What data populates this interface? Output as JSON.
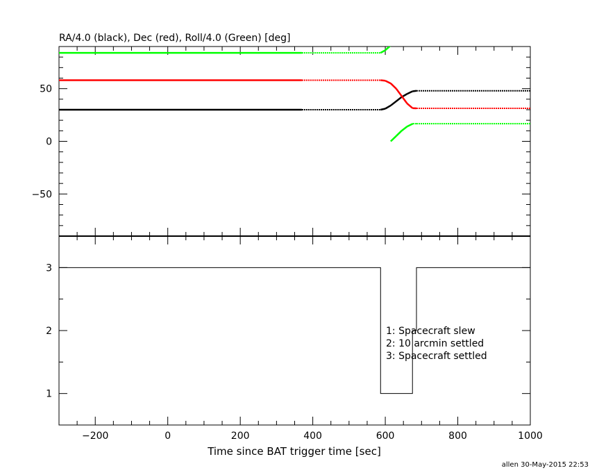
{
  "chart_data": [
    {
      "type": "line",
      "title": "RA/4.0 (black), Dec (red), Roll/4.0 (Green) [deg]",
      "xlim": [
        -300,
        1000
      ],
      "ylim": [
        -90,
        90
      ],
      "yticks": [
        -50,
        0,
        50
      ],
      "grid": false,
      "dotted_from": 370,
      "series": [
        {
          "color": "#000000",
          "segments": [
            [
              [
                -300,
                30
              ],
              [
                370,
                30
              ],
              [
                587,
                30
              ],
              [
                600,
                31
              ],
              [
                615,
                34
              ],
              [
                630,
                38
              ],
              [
                645,
                42
              ],
              [
                660,
                45
              ],
              [
                675,
                47.5
              ],
              [
                686,
                48
              ],
              [
                1000,
                48
              ]
            ]
          ]
        },
        {
          "color": "#ff0000",
          "segments": [
            [
              [
                -300,
                58
              ],
              [
                370,
                58
              ],
              [
                587,
                58
              ],
              [
                600,
                57.5
              ],
              [
                615,
                55
              ],
              [
                630,
                50
              ],
              [
                645,
                43
              ],
              [
                660,
                36
              ],
              [
                675,
                31.5
              ],
              [
                686,
                31.3
              ],
              [
                1000,
                31.3
              ]
            ]
          ]
        },
        {
          "color": "#00ff00",
          "segments": [
            [
              [
                -300,
                84
              ],
              [
                370,
                84
              ],
              [
                587,
                84
              ],
              [
                600,
                86.5
              ],
              [
                615,
                91
              ]
            ],
            [
              [
                615,
                0
              ],
              [
                630,
                5
              ],
              [
                645,
                10
              ],
              [
                660,
                14
              ],
              [
                676,
                16.7
              ],
              [
                686,
                16.7
              ],
              [
                1000,
                16.7
              ]
            ]
          ]
        }
      ]
    },
    {
      "type": "line",
      "xlabel": "Time since BAT trigger time [sec]",
      "xlim": [
        -300,
        1000
      ],
      "ylim": [
        0.5,
        3.5
      ],
      "xticks": [
        -200,
        0,
        200,
        400,
        600,
        800,
        1000
      ],
      "yticks": [
        1,
        2,
        3
      ],
      "grid": false,
      "series": [
        {
          "color": "#000000",
          "step": [
            [
              -300,
              3
            ],
            [
              587,
              3
            ],
            [
              587,
              1
            ],
            [
              675,
              1
            ],
            [
              675,
              2
            ],
            [
              686,
              2
            ],
            [
              686,
              3
            ],
            [
              1000,
              3
            ]
          ]
        }
      ],
      "annotations": [
        "1: Spacecraft slew",
        "2: 10 arcmin settled",
        "3: Spacecraft settled"
      ]
    }
  ],
  "footer": "allen 30-May-2015 22:53"
}
